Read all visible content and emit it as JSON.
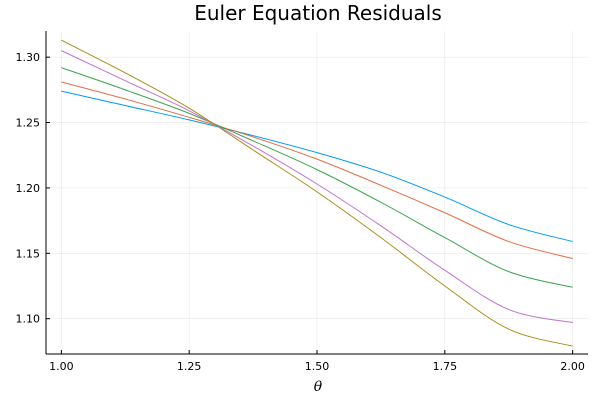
{
  "chart_data": {
    "type": "line",
    "title": "Euler Equation Residuals",
    "xlabel": "θ",
    "ylabel": "",
    "xlim": [
      0.97,
      2.03
    ],
    "ylim": [
      1.073,
      1.32
    ],
    "xticks": [
      1.0,
      1.25,
      1.5,
      1.75,
      2.0
    ],
    "xtick_labels": [
      "1.00",
      "1.25",
      "1.50",
      "1.75",
      "2.00"
    ],
    "yticks": [
      1.1,
      1.15,
      1.2,
      1.25,
      1.3
    ],
    "ytick_labels": [
      "1.10",
      "1.15",
      "1.20",
      "1.25",
      "1.30"
    ],
    "grid": true,
    "legend": "none",
    "x": [
      1.0,
      1.125,
      1.25,
      1.375,
      1.5,
      1.625,
      1.75,
      1.875,
      2.0
    ],
    "series": [
      {
        "color": "#009af9",
        "values": [
          1.274,
          1.263,
          1.252,
          1.24,
          1.227,
          1.212,
          1.193,
          1.172,
          1.159
        ]
      },
      {
        "color": "#e26f46",
        "values": [
          1.281,
          1.268,
          1.254,
          1.239,
          1.222,
          1.202,
          1.181,
          1.159,
          1.146
        ]
      },
      {
        "color": "#3da44d",
        "values": [
          1.292,
          1.275,
          1.257,
          1.236,
          1.214,
          1.189,
          1.162,
          1.136,
          1.124
        ]
      },
      {
        "color": "#c271d2",
        "values": [
          1.305,
          1.282,
          1.259,
          1.232,
          1.203,
          1.171,
          1.137,
          1.107,
          1.097
        ]
      },
      {
        "color": "#ac8d18",
        "values": [
          1.313,
          1.288,
          1.261,
          1.229,
          1.197,
          1.162,
          1.125,
          1.092,
          1.079
        ]
      }
    ]
  }
}
